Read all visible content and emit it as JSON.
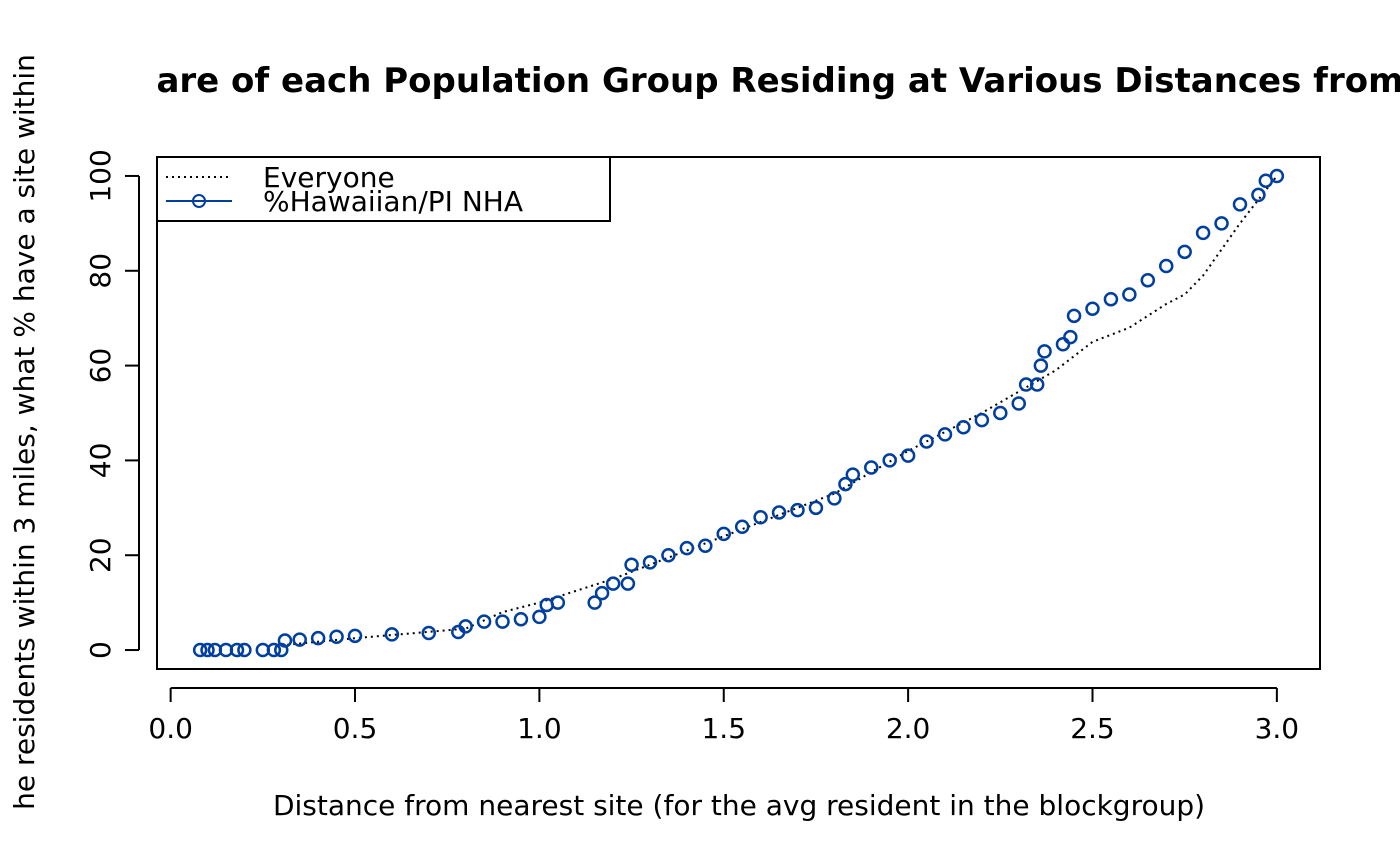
{
  "chart_data": {
    "type": "line",
    "title": "are of each Population Group Residing at Various Distances from",
    "x_label": "Distance from nearest site (for the avg resident in the blockgroup)",
    "y_label": "he residents within 3 miles, what % have a site within",
    "xlim": [
      -0.037,
      3.117
    ],
    "ylim": [
      -4,
      104
    ],
    "xticks": [
      {
        "value": 0,
        "label": "0.0"
      },
      {
        "value": 0.5,
        "label": "0.5"
      },
      {
        "value": 1,
        "label": "1.0"
      },
      {
        "value": 1.5,
        "label": "1.5"
      },
      {
        "value": 2,
        "label": "2.0"
      },
      {
        "value": 2.5,
        "label": "2.5"
      },
      {
        "value": 3,
        "label": "3.0"
      }
    ],
    "yticks": [
      0,
      20,
      40,
      60,
      80,
      100
    ],
    "legend": "top-left",
    "series": [
      {
        "name": "Everyone",
        "color": "#000000",
        "style": "dotted",
        "x": [
          0.3,
          0.5,
          0.8,
          0.9,
          1.0,
          1.2,
          1.5,
          1.8,
          2.0,
          2.2,
          2.4,
          2.5,
          2.6,
          2.7,
          2.75,
          2.8,
          2.9,
          3.0
        ],
        "values": [
          1,
          2.5,
          4.5,
          8,
          10,
          15,
          24,
          33,
          42,
          50,
          59,
          65,
          68,
          73,
          75,
          79,
          90,
          100
        ]
      },
      {
        "name": "%Hawaiian/PI NHA",
        "color": "#003f9f",
        "style": "points",
        "x": [
          0.08,
          0.1,
          0.12,
          0.15,
          0.18,
          0.2,
          0.25,
          0.28,
          0.3,
          0.31,
          0.35,
          0.4,
          0.45,
          0.5,
          0.6,
          0.7,
          0.78,
          0.8,
          0.85,
          0.9,
          0.95,
          1.0,
          1.02,
          1.05,
          1.15,
          1.17,
          1.2,
          1.24,
          1.25,
          1.3,
          1.35,
          1.4,
          1.45,
          1.5,
          1.55,
          1.6,
          1.65,
          1.7,
          1.75,
          1.8,
          1.83,
          1.85,
          1.9,
          1.95,
          2.0,
          2.05,
          2.1,
          2.15,
          2.2,
          2.25,
          2.3,
          2.32,
          2.35,
          2.36,
          2.37,
          2.42,
          2.44,
          2.45,
          2.5,
          2.55,
          2.6,
          2.65,
          2.7,
          2.75,
          2.8,
          2.85,
          2.9,
          2.95,
          2.97,
          3.0
        ],
        "values": [
          0,
          0,
          0,
          0,
          0,
          0,
          0,
          0,
          0,
          2,
          2.2,
          2.5,
          2.8,
          3,
          3.3,
          3.6,
          3.8,
          5,
          6,
          6,
          6.5,
          7,
          9.5,
          10,
          10,
          12,
          14,
          14,
          18,
          18.5,
          20,
          21.5,
          22,
          24.5,
          26,
          28,
          29,
          29.5,
          30,
          32,
          35,
          37,
          38.5,
          40,
          41,
          44,
          45.5,
          47,
          48.5,
          50,
          52,
          56,
          56,
          60,
          63,
          64.5,
          66,
          70.5,
          72,
          74,
          75,
          78,
          81,
          84,
          88,
          90,
          94,
          96,
          99,
          100
        ]
      }
    ]
  }
}
